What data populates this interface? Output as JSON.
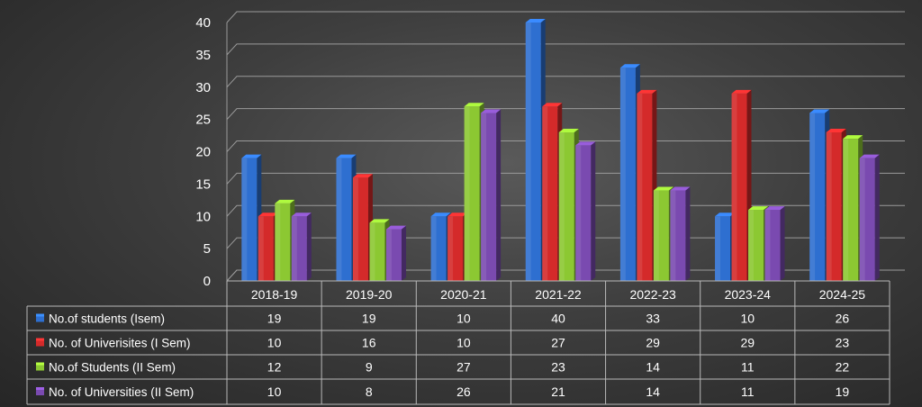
{
  "chart_data": {
    "type": "bar",
    "categories": [
      "2018-19",
      "2019-20",
      "2020-21",
      "2021-22",
      "2022-23",
      "2023-24",
      "2024-25"
    ],
    "series": [
      {
        "name": "No.of students (Isem)",
        "values": [
          19,
          19,
          10,
          40,
          33,
          10,
          26
        ],
        "color": "#2e6fd0"
      },
      {
        "name": "No. of Univerisites (I Sem)",
        "values": [
          10,
          16,
          10,
          27,
          29,
          29,
          23
        ],
        "color": "#d42a2a"
      },
      {
        "name": "No.of Students (II Sem)",
        "values": [
          12,
          9,
          27,
          23,
          14,
          11,
          22
        ],
        "color": "#8cc832"
      },
      {
        "name": "No. of Universities (II Sem)",
        "values": [
          10,
          8,
          26,
          21,
          14,
          11,
          19
        ],
        "color": "#7a4ab0"
      }
    ],
    "yticks": [
      "0",
      "5",
      "10",
      "15",
      "20",
      "25",
      "30",
      "35",
      "40"
    ],
    "ylim": [
      0,
      40
    ],
    "grid": true,
    "style": "3d-clustered-column",
    "data_table": true
  }
}
